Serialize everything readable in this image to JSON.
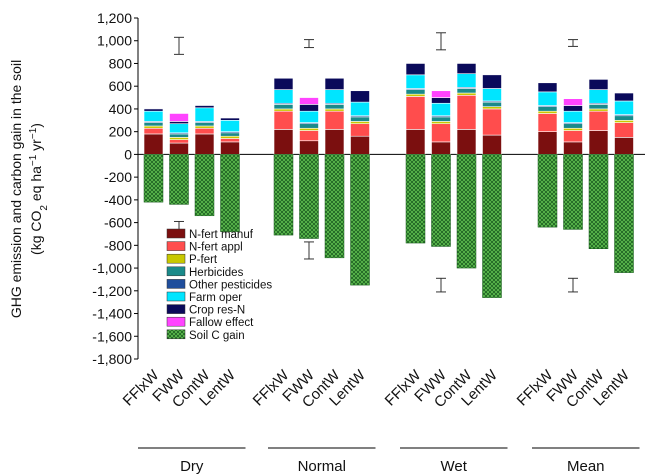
{
  "chart_data": {
    "type": "bar",
    "stacked": true,
    "ylabel_line1": "GHG emission and carbon gain in the soil",
    "ylabel_line2_parts": [
      "(kg CO",
      "2",
      " eq ha",
      "−1",
      " yr",
      "−1",
      ")"
    ],
    "ylim": [
      -1800,
      1200
    ],
    "yticks": [
      1200,
      1000,
      800,
      600,
      400,
      200,
      0,
      -200,
      -400,
      -600,
      -800,
      -1000,
      -1200,
      -1400,
      -1600,
      -1800
    ],
    "ytick_labels": [
      "1,200",
      "1,000",
      "800",
      "600",
      "400",
      "200",
      "0",
      "-200",
      "-400",
      "-600",
      "-800",
      "-1,000",
      "-1,200",
      "-1,400",
      "-1,600",
      "-1,800"
    ],
    "groups": [
      "Dry",
      "Normal",
      "Wet",
      "Mean"
    ],
    "categories": [
      "FFlxW",
      "FWW",
      "ContW",
      "LentW"
    ],
    "series_colors": {
      "N-fert manuf": "#7b0f0f",
      "N-fert appl": "#ff4d4d",
      "P-fert": "#c8c800",
      "Herbicides": "#1a8a8a",
      "Other pesticides": "#1f4e9c",
      "Farm oper": "#00e5ff",
      "Crop res-N": "#0a0a5a",
      "Fallow effect": "#ff44ff",
      "Soil C gain": "#2e7d32"
    },
    "legend": [
      "N-fert manuf",
      "N-fert appl",
      "P-fert",
      "Herbicides",
      "Other pesticides",
      "Farm oper",
      "Crop res-N",
      "Fallow effect",
      "Soil C gain"
    ],
    "bars": [
      {
        "group": "Dry",
        "category": "FFlxW",
        "N-fert manuf": 180,
        "N-fert appl": 50,
        "P-fert": 20,
        "Herbicides": 30,
        "Other pesticides": 10,
        "Farm oper": 90,
        "Crop res-N": 20,
        "Fallow effect": 0,
        "Soil C gain": -420
      },
      {
        "group": "Dry",
        "category": "FWW",
        "N-fert manuf": 100,
        "N-fert appl": 30,
        "P-fert": 20,
        "Herbicides": 30,
        "Other pesticides": 10,
        "Farm oper": 80,
        "Crop res-N": 20,
        "Fallow effect": 70,
        "Soil C gain": -440
      },
      {
        "group": "Dry",
        "category": "ContW",
        "N-fert manuf": 180,
        "N-fert appl": 50,
        "P-fert": 20,
        "Herbicides": 30,
        "Other pesticides": 10,
        "Farm oper": 120,
        "Crop res-N": 20,
        "Fallow effect": 0,
        "Soil C gain": -540
      },
      {
        "group": "Dry",
        "category": "LentW",
        "N-fert manuf": 110,
        "N-fert appl": 30,
        "P-fert": 20,
        "Herbicides": 30,
        "Other pesticides": 10,
        "Farm oper": 100,
        "Crop res-N": 20,
        "Fallow effect": 0,
        "Soil C gain": -680
      },
      {
        "group": "Normal",
        "category": "FFlxW",
        "N-fert manuf": 220,
        "N-fert appl": 160,
        "P-fert": 20,
        "Herbicides": 40,
        "Other pesticides": 10,
        "Farm oper": 120,
        "Crop res-N": 100,
        "Fallow effect": 0,
        "Soil C gain": -710
      },
      {
        "group": "Normal",
        "category": "FWW",
        "N-fert manuf": 120,
        "N-fert appl": 90,
        "P-fert": 20,
        "Herbicides": 40,
        "Other pesticides": 10,
        "Farm oper": 100,
        "Crop res-N": 60,
        "Fallow effect": 60,
        "Soil C gain": -740
      },
      {
        "group": "Normal",
        "category": "ContW",
        "N-fert manuf": 220,
        "N-fert appl": 160,
        "P-fert": 20,
        "Herbicides": 40,
        "Other pesticides": 10,
        "Farm oper": 120,
        "Crop res-N": 100,
        "Fallow effect": 0,
        "Soil C gain": -910
      },
      {
        "group": "Normal",
        "category": "LentW",
        "N-fert manuf": 160,
        "N-fert appl": 110,
        "P-fert": 20,
        "Herbicides": 40,
        "Other pesticides": 10,
        "Farm oper": 120,
        "Crop res-N": 100,
        "Fallow effect": 0,
        "Soil C gain": -1150
      },
      {
        "group": "Wet",
        "category": "FFlxW",
        "N-fert manuf": 220,
        "N-fert appl": 290,
        "P-fert": 20,
        "Herbicides": 40,
        "Other pesticides": 10,
        "Farm oper": 120,
        "Crop res-N": 100,
        "Fallow effect": 0,
        "Soil C gain": -780
      },
      {
        "group": "Wet",
        "category": "FWW",
        "N-fert manuf": 110,
        "N-fert appl": 160,
        "P-fert": 20,
        "Herbicides": 40,
        "Other pesticides": 10,
        "Farm oper": 110,
        "Crop res-N": 50,
        "Fallow effect": 60,
        "Soil C gain": -810
      },
      {
        "group": "Wet",
        "category": "ContW",
        "N-fert manuf": 220,
        "N-fert appl": 300,
        "P-fert": 20,
        "Herbicides": 40,
        "Other pesticides": 10,
        "Farm oper": 120,
        "Crop res-N": 90,
        "Fallow effect": 0,
        "Soil C gain": -1000
      },
      {
        "group": "Wet",
        "category": "LentW",
        "N-fert manuf": 170,
        "N-fert appl": 230,
        "P-fert": 20,
        "Herbicides": 40,
        "Other pesticides": 10,
        "Farm oper": 110,
        "Crop res-N": 120,
        "Fallow effect": 0,
        "Soil C gain": -1260
      },
      {
        "group": "Mean",
        "category": "FFlxW",
        "N-fert manuf": 200,
        "N-fert appl": 160,
        "P-fert": 20,
        "Herbicides": 40,
        "Other pesticides": 10,
        "Farm oper": 120,
        "Crop res-N": 80,
        "Fallow effect": 0,
        "Soil C gain": -640
      },
      {
        "group": "Mean",
        "category": "FWW",
        "N-fert manuf": 110,
        "N-fert appl": 100,
        "P-fert": 20,
        "Herbicides": 40,
        "Other pesticides": 10,
        "Farm oper": 100,
        "Crop res-N": 50,
        "Fallow effect": 60,
        "Soil C gain": -660
      },
      {
        "group": "Mean",
        "category": "ContW",
        "N-fert manuf": 210,
        "N-fert appl": 170,
        "P-fert": 20,
        "Herbicides": 40,
        "Other pesticides": 10,
        "Farm oper": 120,
        "Crop res-N": 90,
        "Fallow effect": 0,
        "Soil C gain": -830
      },
      {
        "group": "Mean",
        "category": "LentW",
        "N-fert manuf": 150,
        "N-fert appl": 130,
        "P-fert": 20,
        "Herbicides": 40,
        "Other pesticides": 10,
        "Farm oper": 120,
        "Crop res-N": 70,
        "Fallow effect": 0,
        "Soil C gain": -1040
      }
    ],
    "error_bars": [
      {
        "group": "Dry",
        "category": "FWW",
        "center": 950,
        "low": 880,
        "high": 1030
      },
      {
        "group": "Dry",
        "category": "FWW",
        "center": -630,
        "low": -680,
        "high": -590
      },
      {
        "group": "Normal",
        "category": "FWW",
        "center": 980,
        "low": 940,
        "high": 1010
      },
      {
        "group": "Normal",
        "category": "FWW",
        "center": -840,
        "low": -920,
        "high": -770
      },
      {
        "group": "Wet",
        "category": "FWW",
        "center": 990,
        "low": 920,
        "high": 1070
      },
      {
        "group": "Wet",
        "category": "FWW",
        "center": -1150,
        "low": -1210,
        "high": -1090
      },
      {
        "group": "Mean",
        "category": "FWW",
        "center": 980,
        "low": 950,
        "high": 1010
      },
      {
        "group": "Mean",
        "category": "FWW",
        "center": -1150,
        "low": -1210,
        "high": -1090
      }
    ],
    "legend_placement": "lower-left",
    "grid": false
  }
}
